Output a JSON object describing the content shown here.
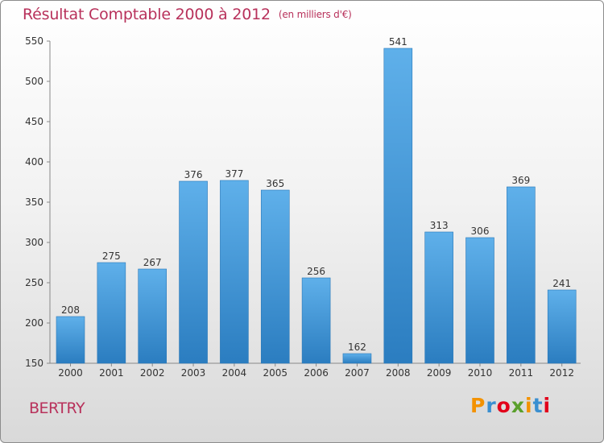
{
  "title": "Résultat Comptable 2000 à 2012",
  "subtitle": "(en milliers d'€)",
  "commune": "BERTRY",
  "logo": {
    "text": "Proxiti",
    "colors": [
      "#f39200",
      "#3a8fd0",
      "#e2001a",
      "#5aa02c",
      "#f39200",
      "#3a8fd0",
      "#e2001a"
    ]
  },
  "colors": {
    "bar_light": "#5fb0ea",
    "bar_dark": "#2b7dc0",
    "title": "#b8315b"
  },
  "chart_data": {
    "type": "bar",
    "title": "Résultat Comptable 2000 à 2012",
    "xlabel": "",
    "ylabel": "",
    "categories": [
      "2000",
      "2001",
      "2002",
      "2003",
      "2004",
      "2005",
      "2006",
      "2007",
      "2008",
      "2009",
      "2010",
      "2011",
      "2012"
    ],
    "values": [
      208,
      275,
      267,
      376,
      377,
      365,
      256,
      162,
      541,
      313,
      306,
      369,
      241
    ],
    "ylim": [
      150,
      550
    ],
    "yticks": [
      150,
      200,
      250,
      300,
      350,
      400,
      450,
      500,
      550
    ],
    "grid": false,
    "data_labels": true
  }
}
